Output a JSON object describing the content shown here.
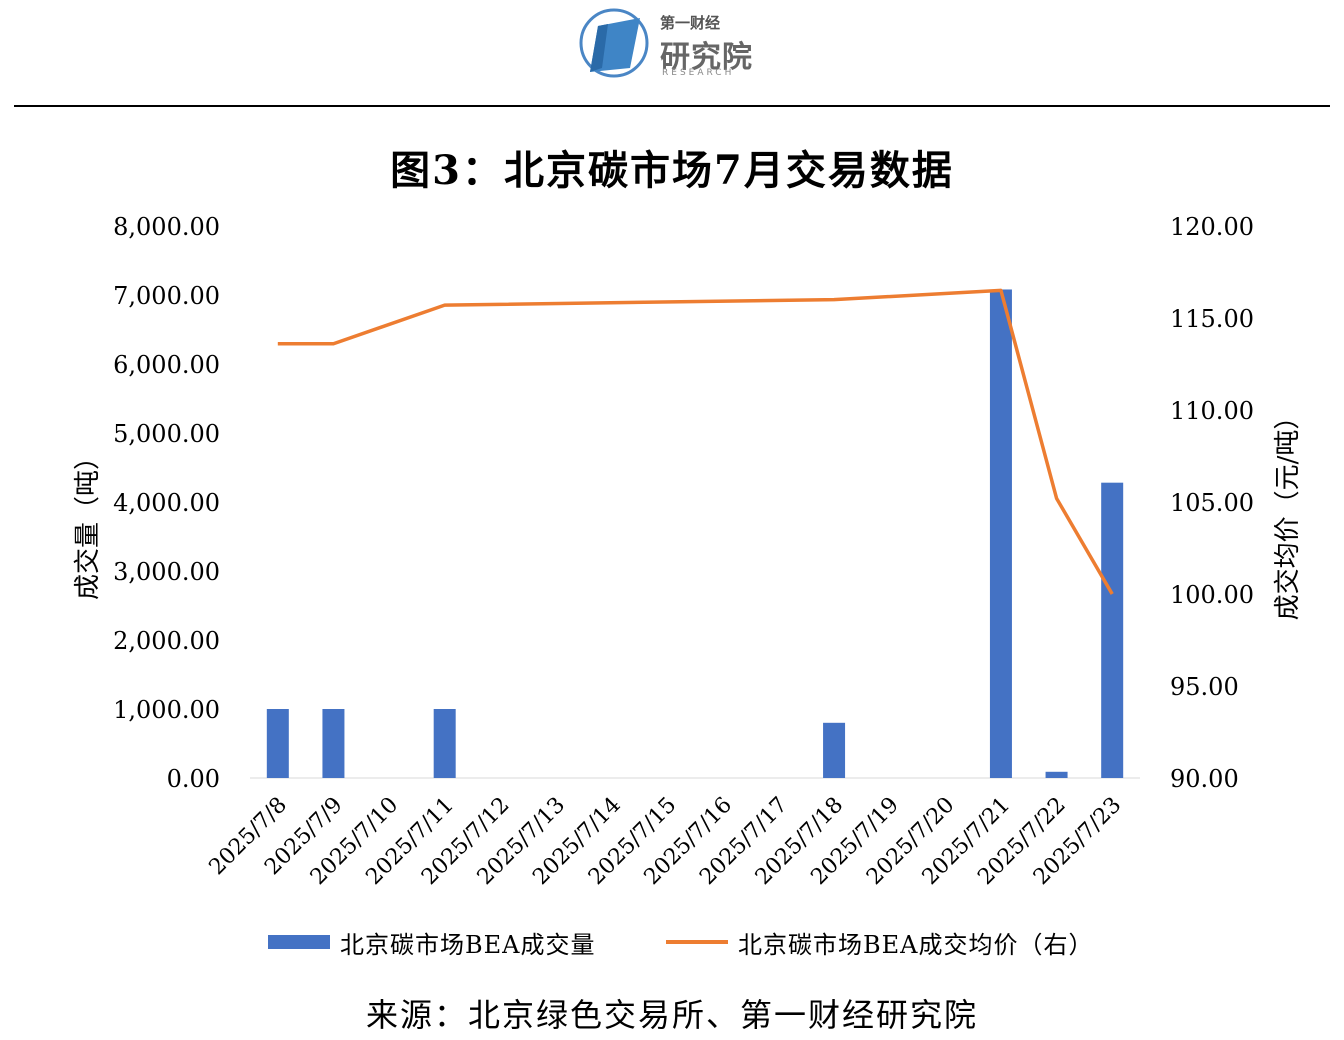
{
  "header": {
    "logo_small": "第一财经",
    "logo_big": "研究院",
    "logo_sub": "RESEARCH"
  },
  "title": "图3：北京碳市场7月交易数据",
  "source": "来源：北京绿色交易所、第一财经研究院",
  "colors": {
    "bar": "#4472C4",
    "line": "#ED7D31"
  },
  "chart_data": {
    "type": "bar",
    "categories": [
      "2025/7/8",
      "2025/7/9",
      "2025/7/10",
      "2025/7/11",
      "2025/7/12",
      "2025/7/13",
      "2025/7/14",
      "2025/7/15",
      "2025/7/16",
      "2025/7/17",
      "2025/7/18",
      "2025/7/19",
      "2025/7/20",
      "2025/7/21",
      "2025/7/22",
      "2025/7/23"
    ],
    "series": [
      {
        "name": "北京碳市场BEA成交量",
        "type": "bar",
        "axis": "left",
        "values": [
          1000,
          1000,
          0,
          1000,
          0,
          0,
          0,
          0,
          0,
          0,
          800,
          0,
          0,
          7080,
          90,
          4280
        ]
      },
      {
        "name": "北京碳市场BEA成交均价（右）",
        "type": "line",
        "axis": "right",
        "values": [
          113.6,
          113.6,
          null,
          115.7,
          null,
          null,
          null,
          null,
          null,
          null,
          116.0,
          null,
          null,
          116.5,
          105.2,
          100.0
        ]
      }
    ],
    "ylabel": "成交量（吨）",
    "y2label": "成交均价（元/吨）",
    "ylim": [
      0,
      8000
    ],
    "y2lim": [
      90,
      120
    ],
    "yticks": [
      "0.00",
      "1,000.00",
      "2,000.00",
      "3,000.00",
      "4,000.00",
      "5,000.00",
      "6,000.00",
      "7,000.00",
      "8,000.00"
    ],
    "y2ticks": [
      "90.00",
      "95.00",
      "100.00",
      "105.00",
      "110.00",
      "115.00",
      "120.00"
    ],
    "legend": "bottom",
    "grid": false
  }
}
